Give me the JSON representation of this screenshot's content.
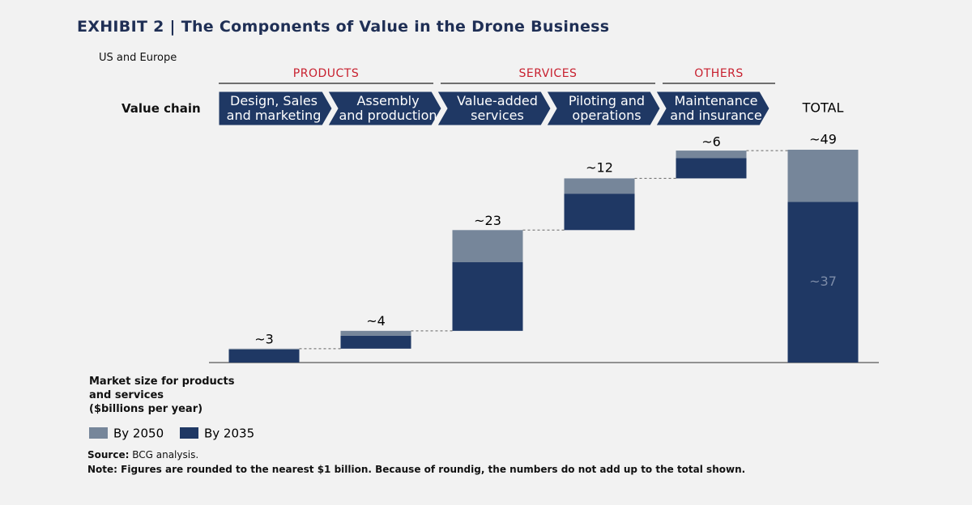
{
  "chart_data": {
    "type": "waterfall",
    "title": "EXHIBIT 2 | The Components of Value in the Drone Business",
    "subtitle": "US and Europe",
    "row_label": "Value chain",
    "groups": [
      "PRODUCTS",
      "SERVICES",
      "OTHERS"
    ],
    "categories": [
      "Design, Sales\nand marketing",
      "Assembly\nand production",
      "Value-added\nservices",
      "Piloting and\noperations",
      "Maintenance\nand insurance",
      "TOTAL"
    ],
    "series": [
      {
        "name": "By 2050",
        "color": "#76869a",
        "values": [
          0.2,
          1.1,
          7.4,
          3.5,
          1.7,
          12
        ]
      },
      {
        "name": "By 2035",
        "color": "#1f3864",
        "values": [
          3,
          3,
          15.8,
          8.4,
          4.7,
          37
        ],
        "value_labels": [
          null,
          null,
          null,
          null,
          null,
          "~37"
        ]
      }
    ],
    "totals": {
      "values": [
        3,
        4,
        23,
        12,
        6,
        49
      ],
      "value_labels": [
        "~3",
        "~4",
        "~23",
        "~12",
        "~6",
        "~49"
      ]
    },
    "y_label": "Market size for products\nand services\n($billions per year)",
    "source": {
      "label": "Source:",
      "text": "BCG analysis."
    },
    "note": {
      "label": "Note:",
      "text": "Figures are rounded to the nearest $1 billion. Because of roundig, the numbers do not add up to the total shown."
    }
  }
}
